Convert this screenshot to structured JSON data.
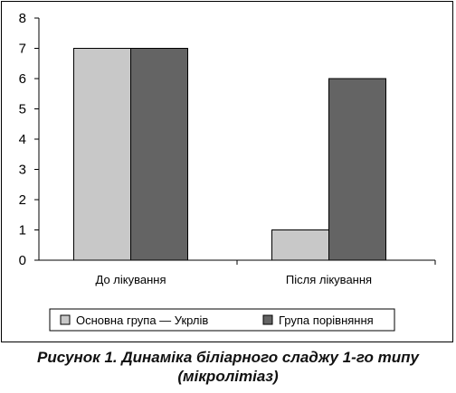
{
  "chart_data": {
    "type": "bar",
    "categories": [
      "До лікування",
      "Після лікування"
    ],
    "series": [
      {
        "name": "Основна група — Укрлів",
        "values": [
          7,
          1
        ],
        "color": "#c8c8c8"
      },
      {
        "name": "Група порівняння",
        "values": [
          7,
          6
        ],
        "color": "#646464"
      }
    ],
    "yticks": [
      "0",
      "1",
      "2",
      "3",
      "4",
      "5",
      "6",
      "7",
      "8"
    ],
    "ylim": [
      0,
      8
    ],
    "grid": false,
    "legend_position": "bottom"
  },
  "caption": {
    "line1": "Рисунок 1. Динаміка біліарного сладжу 1-го типу",
    "line2": "(мікролітіаз)"
  }
}
